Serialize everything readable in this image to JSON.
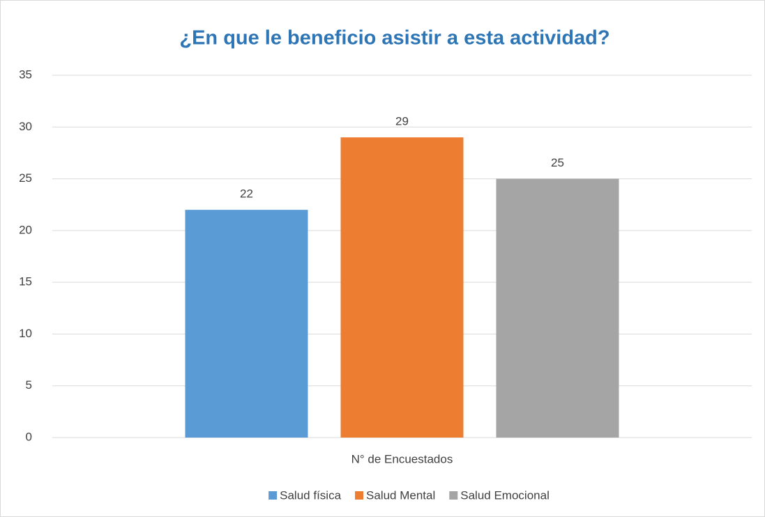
{
  "chart_data": {
    "type": "bar",
    "title": "¿En que le beneficio asistir a esta actividad?",
    "categories": [
      "N° de Encuestados"
    ],
    "series": [
      {
        "name": "Salud física",
        "color": "#5b9bd5",
        "values": [
          22
        ]
      },
      {
        "name": "Salud Mental",
        "color": "#ed7d31",
        "values": [
          29
        ]
      },
      {
        "name": "Salud Emocional",
        "color": "#a5a5a5",
        "values": [
          25
        ]
      }
    ],
    "ylim": [
      0,
      35
    ],
    "yticks": [
      0,
      5,
      10,
      15,
      20,
      25,
      30,
      35
    ],
    "grid": true,
    "legend": "bottom"
  }
}
